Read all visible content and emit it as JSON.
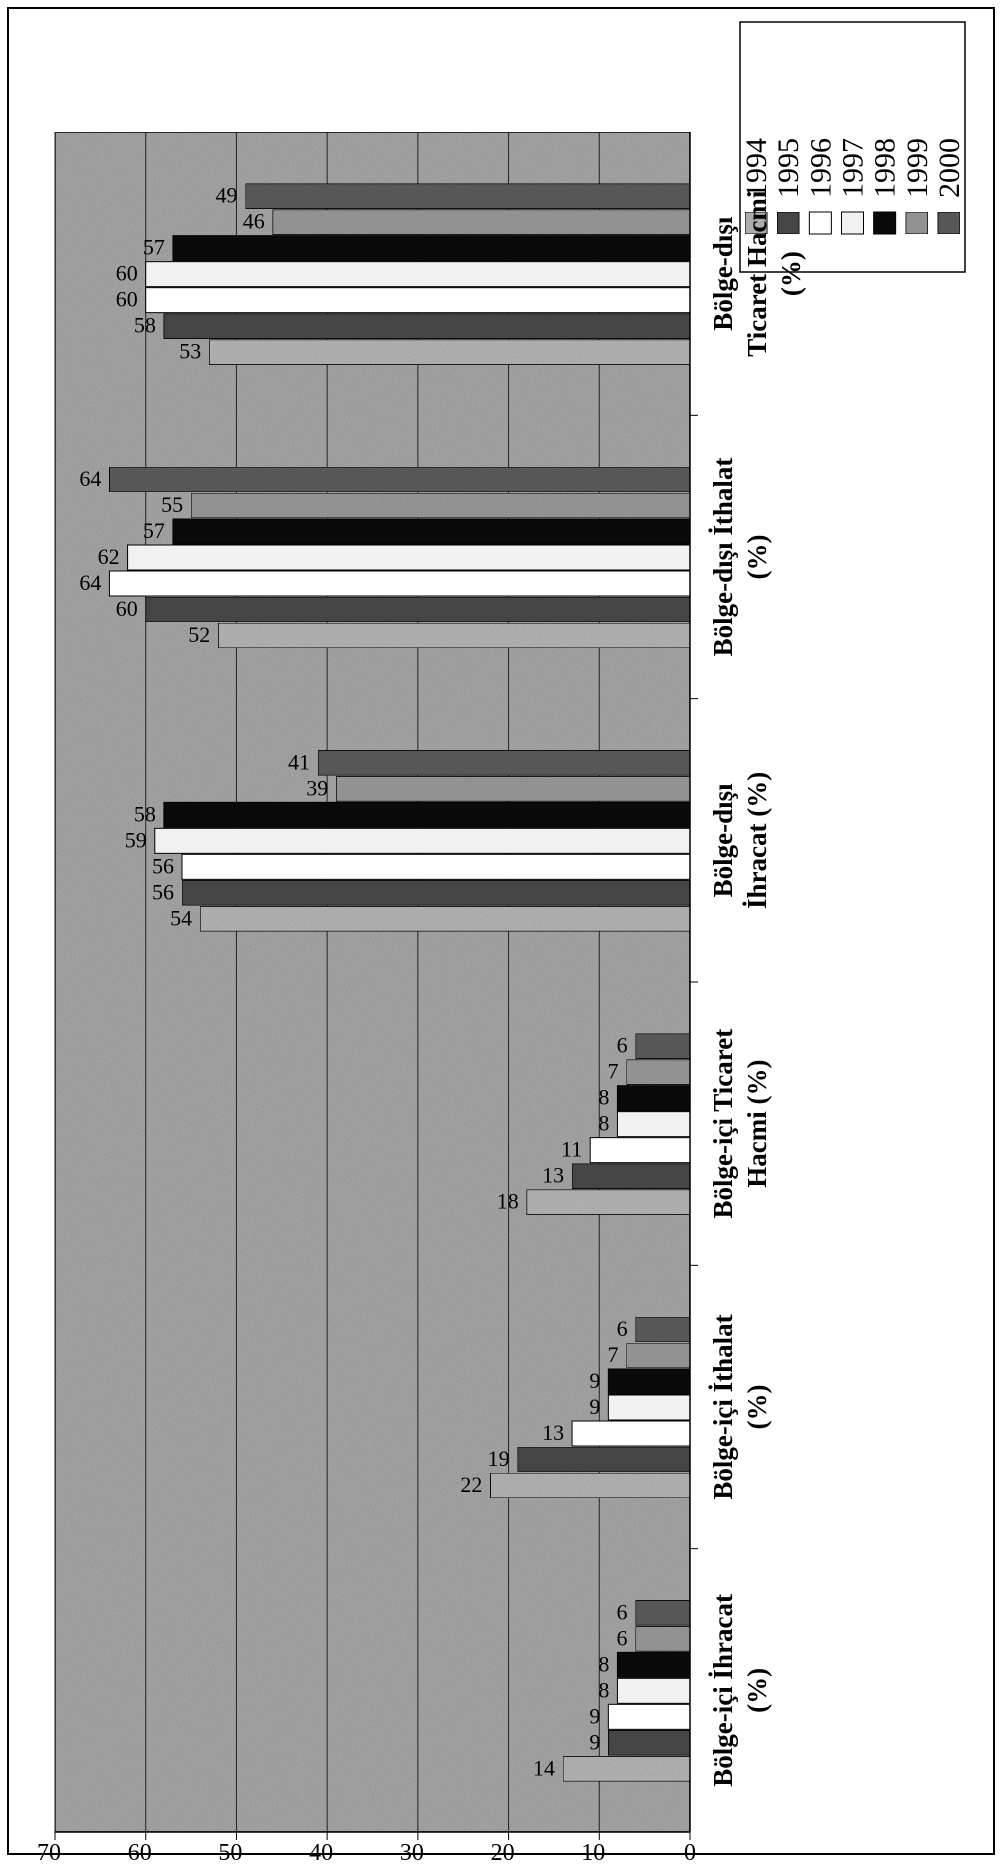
{
  "chart_data": {
    "type": "bar",
    "orientation": "rotated-90",
    "categories": [
      "Bölge-içi İhracat (%)",
      "Bölge-içi İthalat (%)",
      "Bölge-içi Ticaret Hacmi (%)",
      "Bölge-dışı İhracat (%)",
      "Bölge-dışı İthalat (%)",
      "Bölge-dışı Ticaret Hacmi (%)"
    ],
    "category_lines": [
      [
        "Bölge-içi İhracat",
        "(%)"
      ],
      [
        "Bölge-içi İthalat",
        "(%)"
      ],
      [
        "Bölge-içi Ticaret",
        "Hacmi (%)"
      ],
      [
        "Bölge-dışı",
        "İhracat (%)"
      ],
      [
        "Bölge-dışı İthalat",
        "(%)"
      ],
      [
        "Bölge-dışı",
        "Ticaret Hacmi",
        "(%)"
      ]
    ],
    "series": [
      {
        "name": "1994",
        "values": [
          14,
          22,
          18,
          54,
          52,
          53
        ]
      },
      {
        "name": "1995",
        "values": [
          9,
          19,
          13,
          56,
          60,
          58
        ]
      },
      {
        "name": "1996",
        "values": [
          9,
          13,
          11,
          56,
          64,
          60
        ]
      },
      {
        "name": "1997",
        "values": [
          8,
          9,
          8,
          59,
          62,
          60
        ]
      },
      {
        "name": "1998",
        "values": [
          8,
          9,
          8,
          58,
          57,
          57
        ]
      },
      {
        "name": "1999",
        "values": [
          6,
          7,
          7,
          39,
          55,
          46
        ]
      },
      {
        "name": "2000",
        "values": [
          6,
          6,
          6,
          41,
          64,
          49
        ]
      }
    ],
    "data_labels": [
      [
        "14",
        "9",
        "9",
        "8",
        "8",
        "6",
        "6"
      ],
      [
        "22",
        "19",
        "13",
        "9",
        "9",
        "7",
        "6"
      ],
      [
        "18",
        "13",
        "11",
        "8",
        "8",
        "7",
        "6"
      ],
      [
        "54",
        "56",
        "56",
        "59",
        "58",
        "39",
        "41"
      ],
      [
        "52",
        "60",
        "64",
        "62",
        "57",
        "55",
        "64"
      ],
      [
        "53",
        "58",
        "60",
        "60",
        "57",
        "46",
        "49"
      ]
    ],
    "y_ticks": [
      "0",
      "10",
      "20",
      "30",
      "40",
      "50",
      "60",
      "70"
    ],
    "ylim": [
      0,
      70
    ],
    "grid": true,
    "legend_position": "top-right",
    "colors": {
      "plot_background": "#a9a9a9",
      "series": [
        "#b8b8b8",
        "#4a4a4a",
        "#ffffff",
        "#f1f1f1",
        "#0a0a0a",
        "#9c9c9c",
        "#5e5e5e"
      ],
      "gridline": "#222222",
      "text": "#000000"
    }
  }
}
